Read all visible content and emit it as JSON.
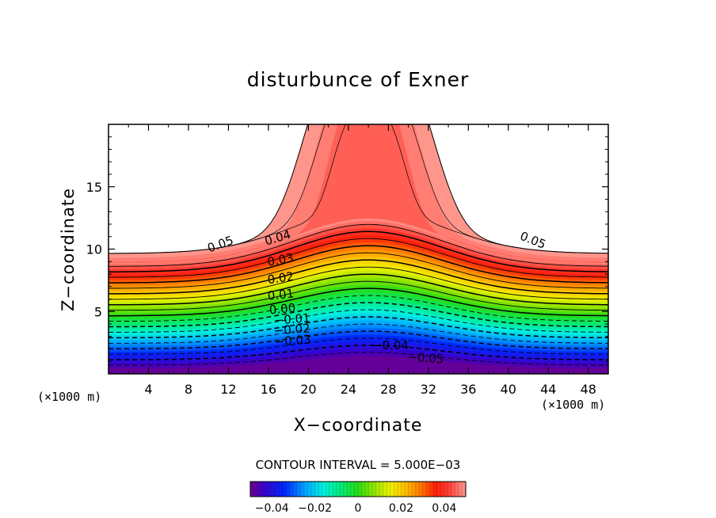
{
  "chart_data": {
    "type": "contour",
    "title": "disturbunce of Exner",
    "xlabel": "X−coordinate",
    "ylabel": "Z−coordinate",
    "x_unit": "(×1000 m)",
    "y_unit": "(×1000 m)",
    "xlim": [
      0,
      50
    ],
    "ylim": [
      0,
      20
    ],
    "x_ticks": [
      4,
      8,
      12,
      16,
      20,
      24,
      28,
      32,
      36,
      40,
      44,
      48
    ],
    "y_ticks": [
      5,
      10,
      15
    ],
    "contour_interval_text": "CONTOUR INTERVAL = 5.000E−03",
    "contour_levels": [
      -0.05,
      -0.045,
      -0.04,
      -0.035,
      -0.03,
      -0.025,
      -0.02,
      -0.015,
      -0.01,
      -0.005,
      0.0,
      0.005,
      0.01,
      0.015,
      0.02,
      0.025,
      0.03,
      0.035,
      0.04,
      0.045,
      0.05
    ],
    "contour_labels": [
      "0.05",
      "0.04",
      "0.03",
      "0.02",
      "0.01",
      "0.00",
      "−0.01",
      "−0.02",
      "−0.03",
      "−0.04",
      "−0.05",
      "0.05"
    ],
    "colorbar": {
      "min": -0.05,
      "max": 0.05,
      "tick_labels": [
        "−0.04",
        "−0.02",
        "0",
        "0.02",
        "0.04"
      ],
      "tick_values": [
        -0.04,
        -0.02,
        0,
        0.02,
        0.04
      ]
    },
    "field_description_values": {
      "value_at_bottom": -0.05,
      "value_at_top_of_colored_region": 0.05,
      "ridge_center_x": 26
    }
  }
}
